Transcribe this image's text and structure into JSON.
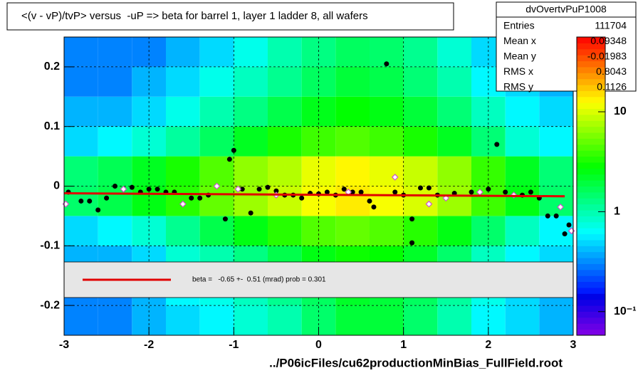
{
  "chart_data": {
    "type": "heatmap-profile",
    "title": "<(v - vP)/tvP> versus  -uP => beta for barrel 1, layer 1 ladder 8, all wafers",
    "x_label": "../P06icFiles/cu62productionMinBias_FullField.root",
    "xlim": [
      -3,
      3
    ],
    "ylim": [
      -0.25,
      0.25
    ],
    "xticks": [
      -3,
      -2,
      -1,
      0,
      1,
      2,
      3
    ],
    "yticks": [
      -0.2,
      -0.1,
      0,
      0.1,
      0.2
    ],
    "grid": true,
    "heatmap": {
      "xbins": [
        -3,
        -2.6,
        -2.2,
        -1.8,
        -1.4,
        -1,
        -0.6,
        -0.2,
        0.2,
        0.6,
        1,
        1.4,
        1.8,
        2.2,
        2.6,
        3
      ],
      "ybins": [
        -0.25,
        -0.2,
        -0.15,
        -0.1,
        -0.05,
        0,
        0.05,
        0.1,
        0.15,
        0.2,
        0.25
      ],
      "z": [
        [
          0.3,
          0.3,
          0.4,
          0.5,
          0.6,
          0.8,
          1,
          1.5,
          2,
          2,
          1.5,
          1,
          0.6,
          0.5,
          0.4
        ],
        [
          0.3,
          0.3,
          0.4,
          0.6,
          0.7,
          0.9,
          1.2,
          1.6,
          2.2,
          2,
          1.6,
          1.1,
          0.7,
          0.5,
          0.4
        ],
        [
          0.4,
          0.4,
          0.5,
          0.8,
          1,
          1.3,
          1.8,
          2.5,
          3,
          2.8,
          2.2,
          1.5,
          0.9,
          0.6,
          0.5
        ],
        [
          0.5,
          0.6,
          0.8,
          1.2,
          1.8,
          2.5,
          3.5,
          4.5,
          5,
          4.5,
          3.5,
          2.5,
          1.5,
          0.9,
          0.6
        ],
        [
          1.5,
          1.8,
          2.5,
          3.5,
          5,
          7,
          9,
          12,
          14,
          12,
          10,
          7,
          4,
          2.5,
          1.5
        ],
        [
          1.4,
          1.7,
          2.3,
          3.2,
          4.5,
          6.5,
          8,
          11,
          13,
          11,
          9,
          6.5,
          3.8,
          2.3,
          1.4
        ],
        [
          0.5,
          0.6,
          0.8,
          1.1,
          1.6,
          2.3,
          3.2,
          4,
          4.5,
          4,
          3.2,
          2.3,
          1.4,
          0.8,
          0.6
        ],
        [
          0.4,
          0.4,
          0.5,
          0.7,
          1,
          1.3,
          1.8,
          2.4,
          2.8,
          2.5,
          2,
          1.4,
          0.9,
          0.6,
          0.5
        ],
        [
          0.3,
          0.3,
          0.4,
          0.5,
          0.7,
          0.9,
          1.2,
          1.6,
          2,
          1.8,
          1.4,
          1,
          0.6,
          0.5,
          0.4
        ],
        [
          0.3,
          0.3,
          0.3,
          0.4,
          0.5,
          0.7,
          1,
          1.3,
          1.6,
          1.5,
          1.2,
          0.8,
          0.5,
          0.4,
          0.3
        ]
      ],
      "zlim": [
        0.058,
        56
      ],
      "log_z": true,
      "zticks": [
        {
          "value": 0.1,
          "label": "10⁻¹"
        },
        1,
        10
      ]
    },
    "series": [
      {
        "name": "profile",
        "marker": "dot",
        "color": "#000000",
        "x": [
          -2.95,
          -2.8,
          -2.7,
          -2.6,
          -2.5,
          -2.4,
          -2.3,
          -2.2,
          -2.1,
          -2.0,
          -1.9,
          -1.8,
          -1.7,
          -1.5,
          -1.4,
          -1.3,
          -1.1,
          -1.05,
          -1.0,
          -0.9,
          -0.8,
          -0.7,
          -0.6,
          -0.5,
          -0.4,
          -0.3,
          -0.2,
          -0.1,
          0.0,
          0.1,
          0.2,
          0.3,
          0.4,
          0.5,
          0.6,
          0.65,
          0.8,
          0.9,
          1.0,
          1.1,
          1.1,
          1.2,
          1.3,
          1.4,
          1.6,
          1.8,
          2.0,
          2.1,
          2.2,
          2.4,
          2.5,
          2.6,
          2.7,
          2.8,
          2.9,
          2.95
        ],
        "values": [
          -0.01,
          -0.025,
          -0.025,
          -0.04,
          -0.02,
          0.0,
          -0.005,
          -0.002,
          -0.01,
          -0.005,
          -0.005,
          -0.01,
          -0.01,
          -0.02,
          -0.02,
          -0.015,
          -0.055,
          0.045,
          0.06,
          -0.005,
          -0.045,
          -0.005,
          -0.002,
          -0.008,
          -0.015,
          -0.015,
          -0.02,
          -0.012,
          -0.013,
          -0.01,
          -0.015,
          -0.005,
          -0.01,
          -0.01,
          -0.025,
          -0.035,
          0.205,
          -0.01,
          -0.015,
          -0.055,
          -0.095,
          -0.003,
          -0.003,
          -0.015,
          -0.012,
          -0.01,
          -0.005,
          0.07,
          -0.01,
          -0.015,
          -0.01,
          -0.02,
          -0.05,
          -0.05,
          -0.08,
          -0.065
        ]
      },
      {
        "name": "profile-alt",
        "marker": "diamond",
        "color": "#cc55cc",
        "x": [
          -2.98,
          -2.3,
          -1.6,
          -1.2,
          -0.95,
          -0.5,
          0.35,
          0.9,
          1.3,
          1.5,
          1.9,
          2.3,
          2.85,
          2.98
        ],
        "values": [
          -0.03,
          -0.005,
          -0.03,
          0.0,
          -0.005,
          -0.015,
          -0.01,
          0.015,
          -0.03,
          -0.02,
          -0.01,
          -0.015,
          -0.035,
          -0.075
        ]
      }
    ],
    "fit": {
      "x": [
        -3,
        2.9
      ],
      "values": [
        -0.012,
        -0.017
      ],
      "color": "#e00000",
      "label": "beta =   -0.65 +-  0.51 (mrad) prob = 0.301"
    },
    "stats": {
      "title": "dvOvertvPuP1008",
      "rows": [
        {
          "label": "Entries",
          "value": 111704
        },
        {
          "label": "Mean x",
          "value": 0.09348
        },
        {
          "label": "Mean y",
          "value": -0.01983
        },
        {
          "label": "RMS x",
          "value": 0.8043
        },
        {
          "label": "RMS y",
          "value": 0.1126
        }
      ]
    }
  }
}
